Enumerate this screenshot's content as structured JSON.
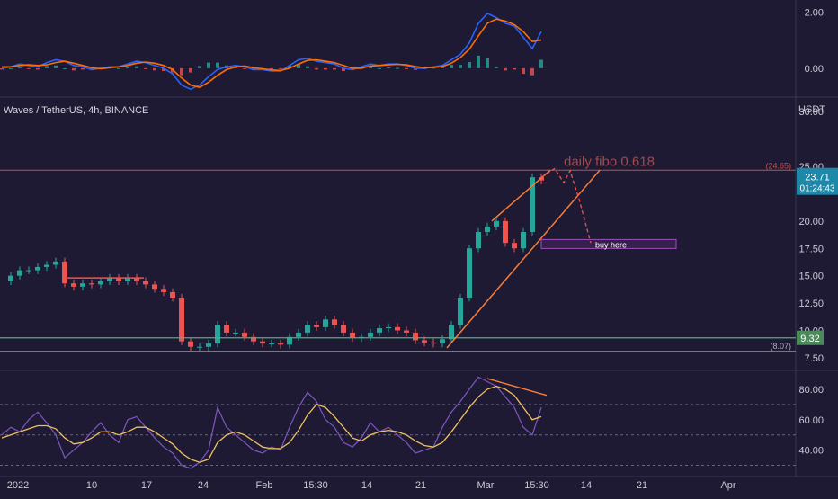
{
  "symbol": {
    "text": "Waves / TetherUS, 4h, BINANCE",
    "currency": "USDT"
  },
  "colors": {
    "background": "#1e1a33",
    "up": "#26a69a",
    "down": "#ef5350",
    "macd_line": "#2962ff",
    "signal_line": "#ff6d00",
    "rsi_line": "#7e57c2",
    "rsi_ma": "#f0c060",
    "fib_line": "#c0504d",
    "support_line": "#4caf7a",
    "channel": "#f57c3b",
    "price_badge": "#1e88a8",
    "support_badge": "#4c8a5a"
  },
  "chart_data": [
    {
      "type": "line",
      "name": "MACD",
      "y_ticks": [
        "2.00",
        "0.00"
      ],
      "ylim": [
        -0.9,
        2.3
      ],
      "x": [
        0,
        10,
        20,
        30,
        40,
        50,
        60,
        70,
        80,
        90,
        100,
        110,
        120,
        130,
        140,
        150,
        160,
        170,
        180,
        190,
        200,
        210,
        220,
        230,
        240,
        250,
        260,
        270,
        280,
        290,
        300,
        310,
        320,
        330,
        340,
        350,
        360,
        370,
        380,
        390,
        400,
        410,
        420,
        430,
        440,
        450,
        460,
        470,
        480,
        490,
        500,
        510,
        520,
        530,
        540,
        550,
        560,
        570,
        580,
        590,
        600
      ],
      "series": [
        {
          "name": "MACD",
          "values": [
            0.0,
            0.05,
            0.15,
            0.1,
            0.05,
            0.2,
            0.3,
            0.25,
            0.1,
            0.05,
            -0.05,
            0.0,
            0.05,
            0.05,
            0.15,
            0.25,
            0.2,
            0.1,
            0.0,
            -0.2,
            -0.6,
            -0.75,
            -0.6,
            -0.3,
            -0.05,
            0.05,
            0.1,
            0.05,
            -0.05,
            -0.05,
            -0.1,
            -0.1,
            0.1,
            0.3,
            0.35,
            0.25,
            0.2,
            0.15,
            0.0,
            -0.05,
            0.05,
            0.15,
            0.1,
            0.15,
            0.15,
            0.1,
            0.0,
            0.0,
            0.05,
            0.1,
            0.3,
            0.5,
            0.9,
            1.6,
            1.95,
            1.8,
            1.6,
            1.5,
            1.1,
            0.7,
            1.3
          ]
        },
        {
          "name": "Signal",
          "values": [
            0.05,
            0.05,
            0.1,
            0.12,
            0.1,
            0.12,
            0.2,
            0.25,
            0.18,
            0.1,
            0.02,
            -0.02,
            0.02,
            0.05,
            0.1,
            0.18,
            0.22,
            0.18,
            0.1,
            -0.05,
            -0.35,
            -0.6,
            -0.68,
            -0.5,
            -0.25,
            -0.05,
            0.05,
            0.08,
            0.02,
            -0.02,
            -0.06,
            -0.08,
            0.0,
            0.15,
            0.28,
            0.3,
            0.25,
            0.2,
            0.1,
            0.0,
            0.0,
            0.08,
            0.1,
            0.12,
            0.14,
            0.12,
            0.06,
            0.02,
            0.03,
            0.06,
            0.18,
            0.38,
            0.68,
            1.15,
            1.6,
            1.75,
            1.68,
            1.55,
            1.3,
            0.95,
            1.0
          ]
        }
      ]
    },
    {
      "type": "candlestick",
      "name": "Waves / TetherUS, 4h, BINANCE",
      "y_ticks": [
        "30.00",
        "25.00",
        "20.00",
        "17.50",
        "15.00",
        "12.50",
        "10.00",
        "7.50"
      ],
      "ylim": [
        7,
        31
      ],
      "last_price": "23.71",
      "countdown": "01:24:43",
      "x": [
        0,
        10,
        20,
        30,
        40,
        50,
        60,
        70,
        80,
        90,
        100,
        110,
        120,
        130,
        140,
        150,
        160,
        170,
        180,
        190,
        200,
        210,
        220,
        230,
        240,
        250,
        260,
        270,
        280,
        290,
        300,
        310,
        320,
        330,
        340,
        350,
        360,
        370,
        380,
        390,
        400,
        410,
        420,
        430,
        440,
        450,
        460,
        470,
        480,
        490,
        500,
        510,
        520,
        530,
        540,
        550,
        560,
        570,
        580,
        590,
        600
      ],
      "values": [
        14.5,
        15.0,
        15.5,
        15.5,
        15.8,
        16.0,
        16.3,
        14.3,
        14.0,
        14.3,
        14.2,
        14.5,
        14.8,
        14.5,
        14.8,
        14.5,
        14.2,
        13.8,
        13.5,
        13.0,
        9.0,
        8.5,
        8.5,
        8.8,
        10.5,
        9.8,
        9.8,
        9.4,
        9.0,
        8.8,
        8.8,
        8.7,
        9.4,
        9.8,
        10.5,
        10.3,
        11.0,
        10.5,
        9.8,
        9.3,
        9.4,
        9.8,
        10.2,
        10.3,
        10.0,
        9.8,
        9.1,
        8.9,
        8.8,
        9.2,
        10.5,
        13.0,
        17.5,
        19.0,
        19.5,
        20.0,
        18.0,
        17.5,
        19.0,
        24.0,
        23.71
      ],
      "annotations": [
        {
          "text": "daily fibo 0.618",
          "value": 24.65
        },
        {
          "text": "(24.65)",
          "value": 24.65
        },
        {
          "text": "9.32",
          "value": 9.32
        },
        {
          "text": "(8.07)",
          "value": 8.07
        },
        {
          "text": "buy here",
          "value": 17.9
        }
      ]
    },
    {
      "type": "line",
      "name": "RSI",
      "y_ticks": [
        "80.00",
        "60.00",
        "40.00"
      ],
      "ylim": [
        25,
        90
      ],
      "x": [
        0,
        10,
        20,
        30,
        40,
        50,
        60,
        70,
        80,
        90,
        100,
        110,
        120,
        130,
        140,
        150,
        160,
        170,
        180,
        190,
        200,
        210,
        220,
        230,
        240,
        250,
        260,
        270,
        280,
        290,
        300,
        310,
        320,
        330,
        340,
        350,
        360,
        370,
        380,
        390,
        400,
        410,
        420,
        430,
        440,
        450,
        460,
        470,
        480,
        490,
        500,
        510,
        520,
        530,
        540,
        550,
        560,
        570,
        580,
        590,
        600
      ],
      "series": [
        {
          "name": "RSI",
          "values": [
            50,
            55,
            52,
            60,
            65,
            58,
            50,
            35,
            40,
            45,
            52,
            58,
            50,
            45,
            60,
            62,
            55,
            48,
            42,
            38,
            30,
            28,
            32,
            40,
            68,
            55,
            50,
            45,
            40,
            38,
            42,
            40,
            55,
            68,
            78,
            72,
            60,
            55,
            45,
            42,
            48,
            58,
            52,
            55,
            50,
            45,
            38,
            40,
            42,
            55,
            65,
            72,
            80,
            88,
            85,
            82,
            75,
            68,
            55,
            50,
            68
          ]
        },
        {
          "name": "RSI MA",
          "values": [
            48,
            50,
            52,
            54,
            56,
            56,
            54,
            48,
            44,
            45,
            48,
            52,
            52,
            50,
            52,
            55,
            55,
            52,
            48,
            44,
            38,
            34,
            32,
            34,
            45,
            50,
            52,
            50,
            46,
            42,
            41,
            41,
            45,
            53,
            63,
            70,
            68,
            62,
            55,
            48,
            46,
            50,
            52,
            53,
            52,
            50,
            46,
            43,
            42,
            45,
            52,
            60,
            68,
            75,
            80,
            82,
            80,
            76,
            68,
            60,
            62
          ]
        }
      ]
    }
  ],
  "x_axis_labels": [
    "2022",
    "10",
    "17",
    "24",
    "Feb",
    "15:30",
    "14",
    "21",
    "Mar",
    "15:30",
    "14",
    "21",
    "Apr"
  ]
}
